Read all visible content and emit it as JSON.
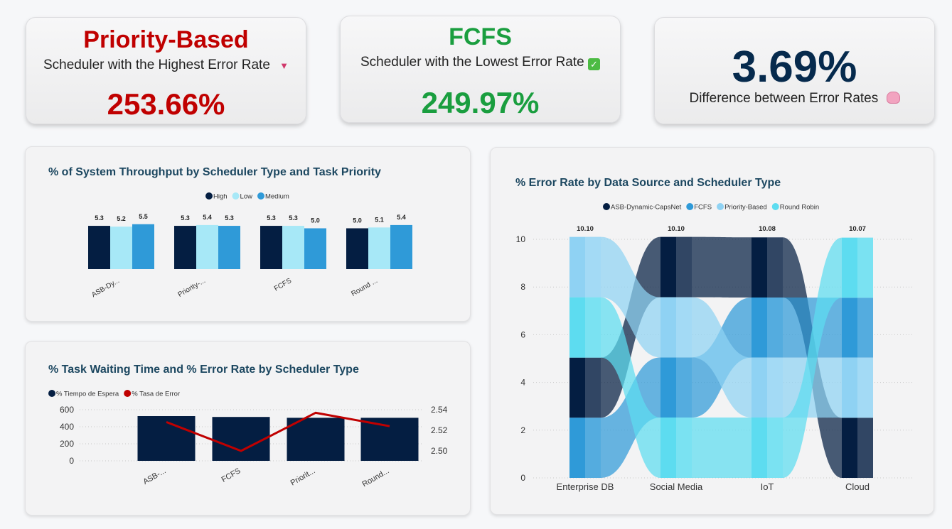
{
  "kpis": {
    "highest": {
      "title": "Priority-Based",
      "subtitle": "Scheduler with the Highest Error Rate",
      "icon": "down-triangle-icon",
      "value": "253.66%"
    },
    "lowest": {
      "title": "FCFS",
      "subtitle": "Scheduler with the Lowest Error Rate",
      "icon": "check-icon",
      "value": "249.97%"
    },
    "difference": {
      "value": "3.69%",
      "subtitle": "Difference between Error Rates",
      "icon": "brain-icon"
    }
  },
  "colors": {
    "red": "#c00000",
    "green": "#1a9e3f",
    "navy": "#062a4d",
    "high": "#041e42",
    "low": "#a7e8f7",
    "medium": "#2f9ad8",
    "line": "#c00000"
  },
  "panels": {
    "throughput": {
      "title": "% of System Throughput by Scheduler Type and Task Priority"
    },
    "waiting": {
      "title": "% Task Waiting Time and % Error Rate by Scheduler Type"
    },
    "error": {
      "title": "% Error Rate by Data Source and Scheduler Type"
    }
  },
  "chart_data": [
    {
      "type": "bar",
      "title": "% of System Throughput by Scheduler Type and Task Priority",
      "categories": [
        "ASB-Dy...",
        "Priority-...",
        "FCFS",
        "Round ..."
      ],
      "series": [
        {
          "name": "High",
          "color": "#041e42",
          "values": [
            5.3,
            5.3,
            5.3,
            5.0
          ]
        },
        {
          "name": "Low",
          "color": "#a7e8f7",
          "values": [
            5.2,
            5.4,
            5.3,
            5.1
          ]
        },
        {
          "name": "Medium",
          "color": "#2f9ad8",
          "values": [
            5.5,
            5.3,
            5.0,
            5.4
          ]
        }
      ],
      "legend": "top-center",
      "grid": false
    },
    {
      "type": "bar",
      "title": "% Task Waiting Time and % Error Rate by Scheduler Type",
      "categories": [
        "ASB-...",
        "FCFS",
        "Priorit...",
        "Round..."
      ],
      "series": [
        {
          "name": "% Tiempo de Espera",
          "type": "bar",
          "axis": "left",
          "color": "#041e42",
          "values": [
            525,
            515,
            505,
            505
          ]
        },
        {
          "name": "% Tasa de Error",
          "type": "line",
          "axis": "right",
          "color": "#c00000",
          "values": [
            2.528,
            2.5,
            2.537,
            2.524
          ]
        }
      ],
      "ylim": [
        0,
        600
      ],
      "yticks": [
        "0",
        "200",
        "400",
        "600"
      ],
      "y2lim": [
        2.49,
        2.545
      ],
      "y2ticks": [
        "2.50",
        "2.52",
        "2.54"
      ],
      "legend": "top-left",
      "grid": true
    },
    {
      "type": "bar",
      "title": "% Error Rate by Data Source and Scheduler Type",
      "stacked": true,
      "categories": [
        "Enterprise DB",
        "Social Media",
        "IoT",
        "Cloud"
      ],
      "totals": [
        "10.10",
        "10.10",
        "10.08",
        "10.07"
      ],
      "series": [
        {
          "name": "ASB-Dynamic-CapsNet",
          "color": "#041e42",
          "values": [
            2.52,
            2.53,
            2.52,
            2.52
          ]
        },
        {
          "name": "FCFS",
          "color": "#2f9ad8",
          "values": [
            2.52,
            2.52,
            2.52,
            2.51
          ]
        },
        {
          "name": "Priority-Based",
          "color": "#8fd2f3",
          "values": [
            2.53,
            2.52,
            2.51,
            2.52
          ]
        },
        {
          "name": "Round Robin",
          "color": "#5ddcf0",
          "values": [
            2.53,
            2.53,
            2.53,
            2.52
          ]
        }
      ],
      "ylim": [
        0,
        10.5
      ],
      "yticks": [
        "0",
        "2",
        "4",
        "6",
        "8",
        "10"
      ],
      "legend": "top-center",
      "grid": true
    }
  ]
}
